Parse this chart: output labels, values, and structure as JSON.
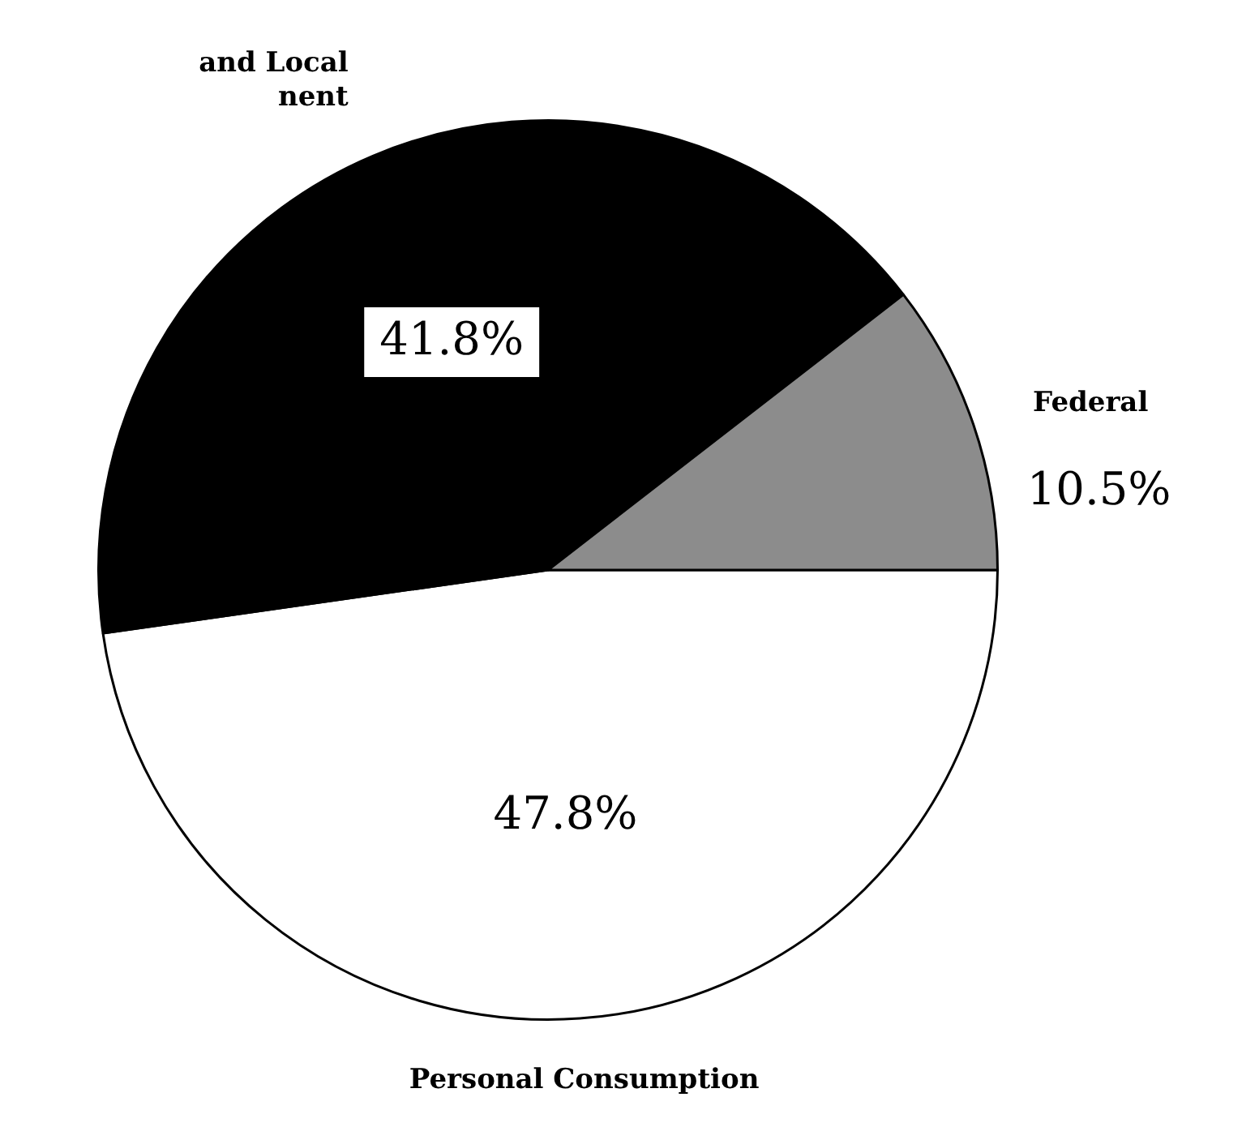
{
  "chart_data": {
    "type": "pie",
    "categories": [
      "Personal Consumption",
      "and Local\nnent",
      "Federal"
    ],
    "values": [
      47.8,
      41.8,
      10.5
    ],
    "value_labels": [
      "47.8%",
      "41.8%",
      "10.5%"
    ],
    "colors": [
      "#ffffff",
      "#000000",
      "#8c8c8c"
    ],
    "legend": false
  }
}
